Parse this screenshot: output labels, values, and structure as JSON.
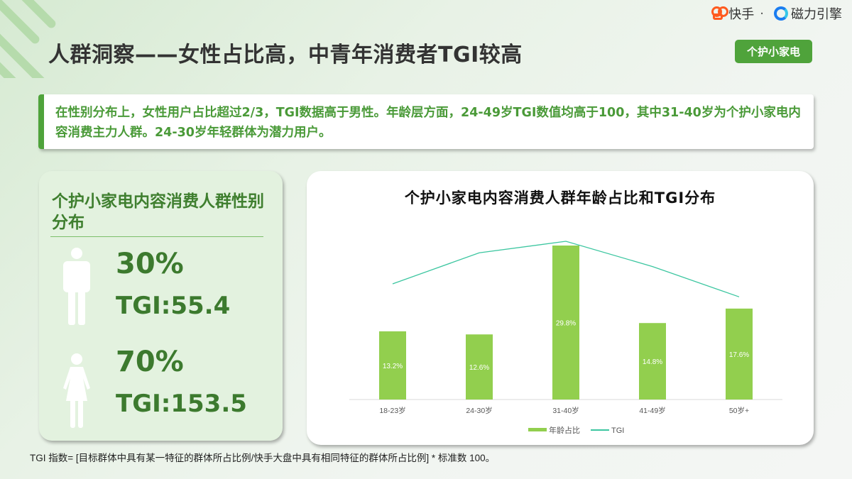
{
  "brand": {
    "kuaishou": "快手",
    "separator": "·",
    "cili": "磁力引擎"
  },
  "header": {
    "title": "人群洞察——女性占比高，中青年消费者TGI较高",
    "tag": "个护小家电"
  },
  "summary": {
    "text": "在性别分布上，女性用户占比超过2/3，TGI数据高于男性。年龄层方面，24-49岁TGI数值均高于100，其中31-40岁为个护小家电内容消费主力人群。24-30岁年轻群体为潜力用户。"
  },
  "gender_panel": {
    "title": "个护小家电内容消费人群性别分布",
    "male": {
      "icon": "male-figure-icon",
      "percent": "30%",
      "tgi": "TGI:55.4"
    },
    "female": {
      "icon": "female-figure-icon",
      "percent": "70%",
      "tgi": "TGI:153.5"
    }
  },
  "chart_data": {
    "type": "bar",
    "title": "个护小家电内容消费人群年龄占比和TGI分布",
    "categories": [
      "18-23岁",
      "24-30岁",
      "31-40岁",
      "41-49岁",
      "50岁+"
    ],
    "series": [
      {
        "name": "年龄占比",
        "type": "bar",
        "color": "#92cf4e",
        "values": [
          13.2,
          12.6,
          29.8,
          14.8,
          17.6
        ],
        "labels": [
          "13.2%",
          "12.6%",
          "29.8%",
          "14.8%",
          "17.6%"
        ]
      },
      {
        "name": "TGI",
        "type": "line",
        "color": "#3cc6a0",
        "values": [
          83,
          126,
          142,
          107,
          65
        ]
      }
    ],
    "legend": [
      "年龄占比",
      "TGI"
    ],
    "legend_position": "bottom",
    "grid": false,
    "xlabel": "",
    "ylabel": ""
  },
  "colors": {
    "accent": "#4fa33b",
    "bar": "#92cf4e",
    "line": "#3cc6a0",
    "summary_text": "#4a9a38"
  },
  "footnote": "TGI 指数= [目标群体中具有某一特征的群体所占比例/快手大盘中具有相同特征的群体所占比例] * 标准数 100。"
}
